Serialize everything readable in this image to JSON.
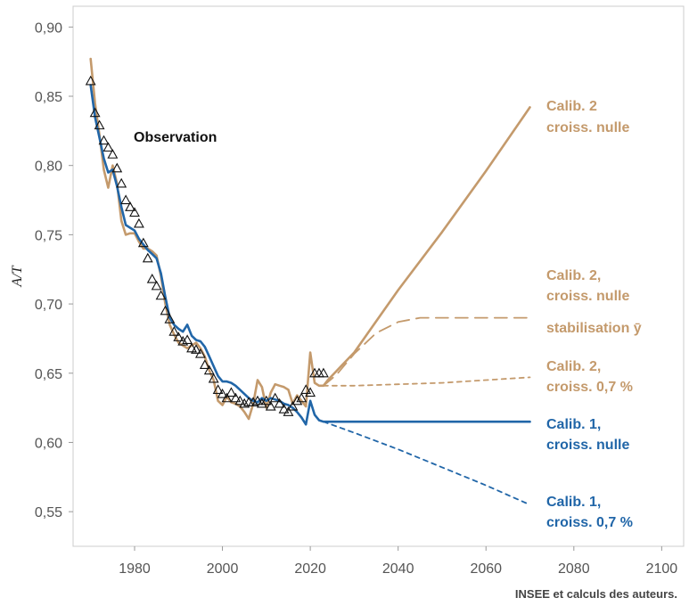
{
  "chart_data": {
    "type": "line",
    "xlabel": "",
    "ylabel": "A/T",
    "xlim": [
      1966,
      2105
    ],
    "ylim": [
      0.525,
      0.915
    ],
    "x_ticks": [
      1980,
      2000,
      2020,
      2040,
      2060,
      2080,
      2100
    ],
    "y_ticks": [
      0.55,
      0.6,
      0.65,
      0.7,
      0.75,
      0.8,
      0.85,
      0.9
    ],
    "y_tick_labels": [
      "0,55",
      "0,60",
      "0,65",
      "0,70",
      "0,75",
      "0,80",
      "0,85",
      "0,90"
    ],
    "grid": false,
    "source": "INSEE et calculs des auteurs.",
    "colors": {
      "calib1": "#2166a8",
      "calib2": "#c49a6c",
      "observation": "#111111"
    },
    "observation": {
      "label": "Observation",
      "marker": "triangle",
      "x": [
        1970,
        1971,
        1972,
        1973,
        1974,
        1975,
        1976,
        1977,
        1978,
        1979,
        1980,
        1981,
        1982,
        1983,
        1984,
        1985,
        1986,
        1987,
        1988,
        1989,
        1990,
        1991,
        1992,
        1993,
        1994,
        1995,
        1996,
        1997,
        1998,
        1999,
        2000,
        2001,
        2002,
        2003,
        2004,
        2005,
        2006,
        2007,
        2008,
        2009,
        2010,
        2011,
        2012,
        2013,
        2014,
        2015,
        2016,
        2017,
        2018,
        2019,
        2020,
        2021,
        2022,
        2023
      ],
      "y": [
        0.861,
        0.838,
        0.829,
        0.818,
        0.813,
        0.808,
        0.798,
        0.787,
        0.775,
        0.77,
        0.766,
        0.758,
        0.744,
        0.733,
        0.718,
        0.713,
        0.706,
        0.695,
        0.689,
        0.68,
        0.676,
        0.673,
        0.674,
        0.668,
        0.667,
        0.664,
        0.656,
        0.652,
        0.646,
        0.638,
        0.635,
        0.632,
        0.636,
        0.632,
        0.63,
        0.628,
        0.629,
        0.629,
        0.63,
        0.628,
        0.63,
        0.626,
        0.632,
        0.628,
        0.624,
        0.622,
        0.626,
        0.63,
        0.632,
        0.638,
        0.636,
        0.65,
        0.65,
        0.65
      ]
    },
    "series": [
      {
        "name": "Calib. 2 croiss. nulle",
        "label_lines": [
          "Calib. 2",
          "croiss. nulle"
        ],
        "color": "#c49a6c",
        "style": "solid",
        "x": [
          1970,
          1971,
          1972,
          1973,
          1974,
          1975,
          1976,
          1977,
          1978,
          1979,
          1980,
          1981,
          1982,
          1983,
          1984,
          1985,
          1986,
          1987,
          1988,
          1989,
          1990,
          1991,
          1992,
          1993,
          1994,
          1995,
          1996,
          1997,
          1998,
          1999,
          2000,
          2001,
          2002,
          2003,
          2004,
          2005,
          2006,
          2007,
          2008,
          2009,
          2010,
          2011,
          2012,
          2013,
          2014,
          2015,
          2016,
          2017,
          2018,
          2019,
          2020,
          2021,
          2022,
          2023,
          2024,
          2030,
          2040,
          2050,
          2060,
          2070
        ],
        "y": [
          0.877,
          0.845,
          0.822,
          0.797,
          0.784,
          0.8,
          0.787,
          0.76,
          0.75,
          0.751,
          0.751,
          0.745,
          0.74,
          0.74,
          0.738,
          0.735,
          0.72,
          0.7,
          0.685,
          0.678,
          0.672,
          0.67,
          0.668,
          0.67,
          0.672,
          0.668,
          0.662,
          0.652,
          0.645,
          0.63,
          0.627,
          0.633,
          0.629,
          0.628,
          0.626,
          0.622,
          0.617,
          0.628,
          0.645,
          0.64,
          0.625,
          0.636,
          0.642,
          0.641,
          0.64,
          0.638,
          0.628,
          0.634,
          0.63,
          0.626,
          0.665,
          0.643,
          0.641,
          0.641,
          0.645,
          0.665,
          0.71,
          0.752,
          0.796,
          0.842
        ]
      },
      {
        "name": "Calib. 2, croiss. nulle stabilisation ȳ",
        "label_lines": [
          "Calib. 2,",
          "croiss. nulle",
          "stabilisation ȳ"
        ],
        "color": "#c49a6c",
        "style": "longdash",
        "x": [
          2023,
          2026,
          2030,
          2035,
          2040,
          2045,
          2050,
          2060,
          2070
        ],
        "y": [
          0.641,
          0.649,
          0.664,
          0.679,
          0.687,
          0.69,
          0.69,
          0.69,
          0.69
        ]
      },
      {
        "name": "Calib. 2, croiss. 0,7 %",
        "label_lines": [
          "Calib. 2,",
          "croiss. 0,7 %"
        ],
        "color": "#c49a6c",
        "style": "shortdash",
        "x": [
          2023,
          2030,
          2040,
          2050,
          2060,
          2070
        ],
        "y": [
          0.641,
          0.641,
          0.642,
          0.643,
          0.645,
          0.647
        ]
      },
      {
        "name": "Calib. 1, croiss. nulle",
        "label_lines": [
          "Calib. 1,",
          "croiss. nulle"
        ],
        "color": "#2166a8",
        "style": "solid",
        "x": [
          1970,
          1971,
          1972,
          1973,
          1974,
          1975,
          1976,
          1977,
          1978,
          1979,
          1980,
          1981,
          1982,
          1983,
          1984,
          1985,
          1986,
          1987,
          1988,
          1989,
          1990,
          1991,
          1992,
          1993,
          1994,
          1995,
          1996,
          1997,
          1998,
          1999,
          2000,
          2001,
          2002,
          2003,
          2004,
          2005,
          2006,
          2007,
          2008,
          2009,
          2010,
          2011,
          2012,
          2013,
          2014,
          2015,
          2016,
          2017,
          2018,
          2019,
          2020,
          2021,
          2022,
          2023,
          2024,
          2030,
          2040,
          2050,
          2060,
          2070
        ],
        "y": [
          0.858,
          0.835,
          0.82,
          0.805,
          0.795,
          0.797,
          0.785,
          0.77,
          0.757,
          0.755,
          0.753,
          0.747,
          0.743,
          0.739,
          0.736,
          0.733,
          0.722,
          0.705,
          0.69,
          0.685,
          0.682,
          0.68,
          0.685,
          0.677,
          0.674,
          0.673,
          0.669,
          0.662,
          0.655,
          0.648,
          0.644,
          0.644,
          0.643,
          0.641,
          0.638,
          0.635,
          0.632,
          0.63,
          0.629,
          0.632,
          0.63,
          0.632,
          0.631,
          0.63,
          0.628,
          0.627,
          0.625,
          0.622,
          0.618,
          0.613,
          0.63,
          0.62,
          0.616,
          0.615,
          0.615,
          0.615,
          0.615,
          0.615,
          0.615,
          0.615
        ]
      },
      {
        "name": "Calib. 1, croiss. 0,7 %",
        "label_lines": [
          "Calib. 1,",
          "croiss. 0,7 %"
        ],
        "color": "#2166a8",
        "style": "shortdash",
        "x": [
          2023,
          2030,
          2040,
          2050,
          2060,
          2070
        ],
        "y": [
          0.615,
          0.607,
          0.595,
          0.582,
          0.569,
          0.555
        ]
      }
    ]
  }
}
